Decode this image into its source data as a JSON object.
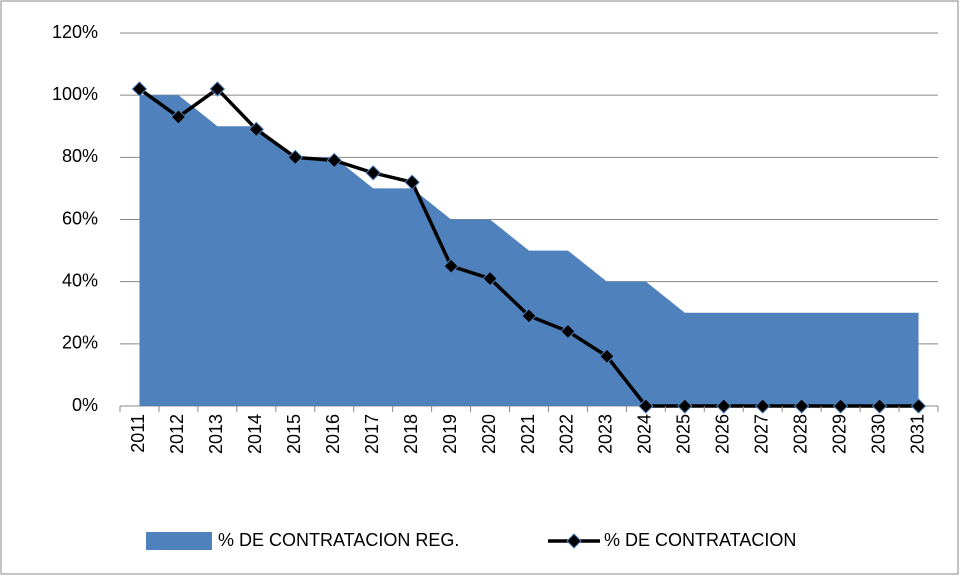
{
  "chart_data": {
    "type": "area-line",
    "categories": [
      "2011",
      "2012",
      "2013",
      "2014",
      "2015",
      "2016",
      "2017",
      "2018",
      "2019",
      "2020",
      "2021",
      "2022",
      "2023",
      "2024",
      "2025",
      "2026",
      "2027",
      "2028",
      "2029",
      "2030",
      "2031"
    ],
    "series": [
      {
        "name": "% DE CONTRATACION REG.",
        "type": "area",
        "color": "#4f81bd",
        "values": [
          100,
          100,
          90,
          90,
          80,
          80,
          70,
          70,
          60,
          60,
          50,
          50,
          40,
          40,
          30,
          30,
          30,
          30,
          30,
          30,
          30
        ]
      },
      {
        "name": "% DE CONTRATACION",
        "type": "line",
        "color": "#000000",
        "marker_color": "#4f81bd",
        "values": [
          102,
          93,
          102,
          89,
          80,
          79,
          75,
          72,
          45,
          41,
          29,
          24,
          16,
          0,
          0,
          0,
          0,
          0,
          0,
          0,
          0
        ]
      }
    ],
    "ylim": [
      0,
      120
    ],
    "yticks": [
      {
        "value": 0,
        "label": "0%"
      },
      {
        "value": 20,
        "label": "20%"
      },
      {
        "value": 40,
        "label": "40%"
      },
      {
        "value": 60,
        "label": "60%"
      },
      {
        "value": 80,
        "label": "80%"
      },
      {
        "value": 100,
        "label": "100%"
      },
      {
        "value": 120,
        "label": "120%"
      }
    ],
    "grid": true,
    "legend": "bottom"
  }
}
